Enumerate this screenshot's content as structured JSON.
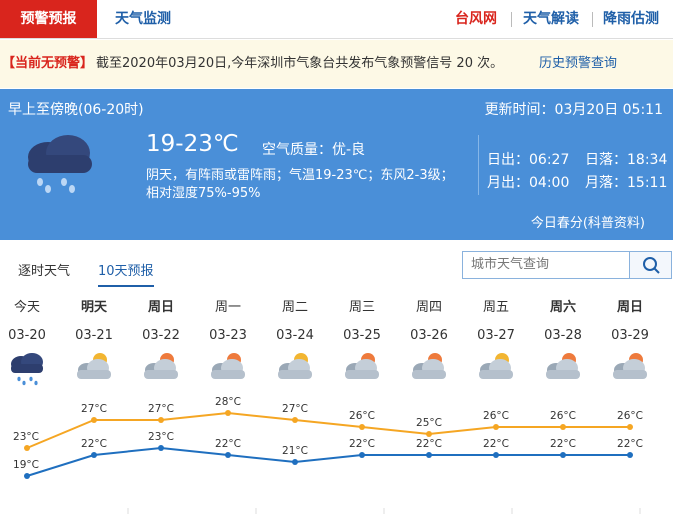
{
  "nav": {
    "active": "预警预报",
    "links": [
      "天气监测"
    ],
    "right_links": [
      "台风网",
      "天气解读",
      "降雨估测"
    ]
  },
  "alert": {
    "status": "【当前无预警】",
    "text": "截至2020年03月20日,今年深圳市气象台共发布气象预警信号 20 次。",
    "link": "历史预警查询"
  },
  "today": {
    "period": "早上至傍晚(06-20时)",
    "updated": "更新时间：03月20日 05:11",
    "temperature": "19-23℃",
    "air_quality": "空气质量：优-良",
    "description": [
      "阴天，有阵雨或雷阵雨；气温19-23℃；东风2-3级；",
      "相对湿度75%-95%"
    ],
    "sunrise": "日出：06:27",
    "sunset": "日落：18:34",
    "moonrise": "月出：04:00",
    "moonset": "月落：15:11",
    "note": "今日春分(科普资料)"
  },
  "forecast": {
    "tabs": [
      "逐时天气",
      "10天预报"
    ],
    "search_placeholder": "城市天气查询",
    "days": [
      "今天",
      "明天",
      "周日",
      "周一",
      "周二",
      "周三",
      "周四",
      "周五",
      "周六",
      "周日"
    ]
  },
  "chart_data": {
    "type": "line",
    "categories": [
      "03-20",
      "03-21",
      "03-22",
      "03-23",
      "03-24",
      "03-25",
      "03-26",
      "03-27",
      "03-28",
      "03-29"
    ],
    "series": [
      {
        "color": "#f5a623",
        "values": [
          23,
          27,
          27,
          28,
          27,
          26,
          25,
          26,
          26,
          26
        ],
        "value_labels": [
          "23°C",
          "27°C",
          "27°C",
          "28°C",
          "27°C",
          "26°C",
          "25°C",
          "26°C",
          "26°C",
          "26°C"
        ]
      },
      {
        "color": "#1f6fbf",
        "values": [
          19,
          22,
          23,
          22,
          21,
          22,
          22,
          22,
          22,
          22
        ],
        "value_labels": [
          "19°C",
          "22°C",
          "23°C",
          "22°C",
          "21°C",
          "22°C",
          "22°C",
          "22°C",
          "22°C",
          "22°C"
        ]
      }
    ]
  }
}
